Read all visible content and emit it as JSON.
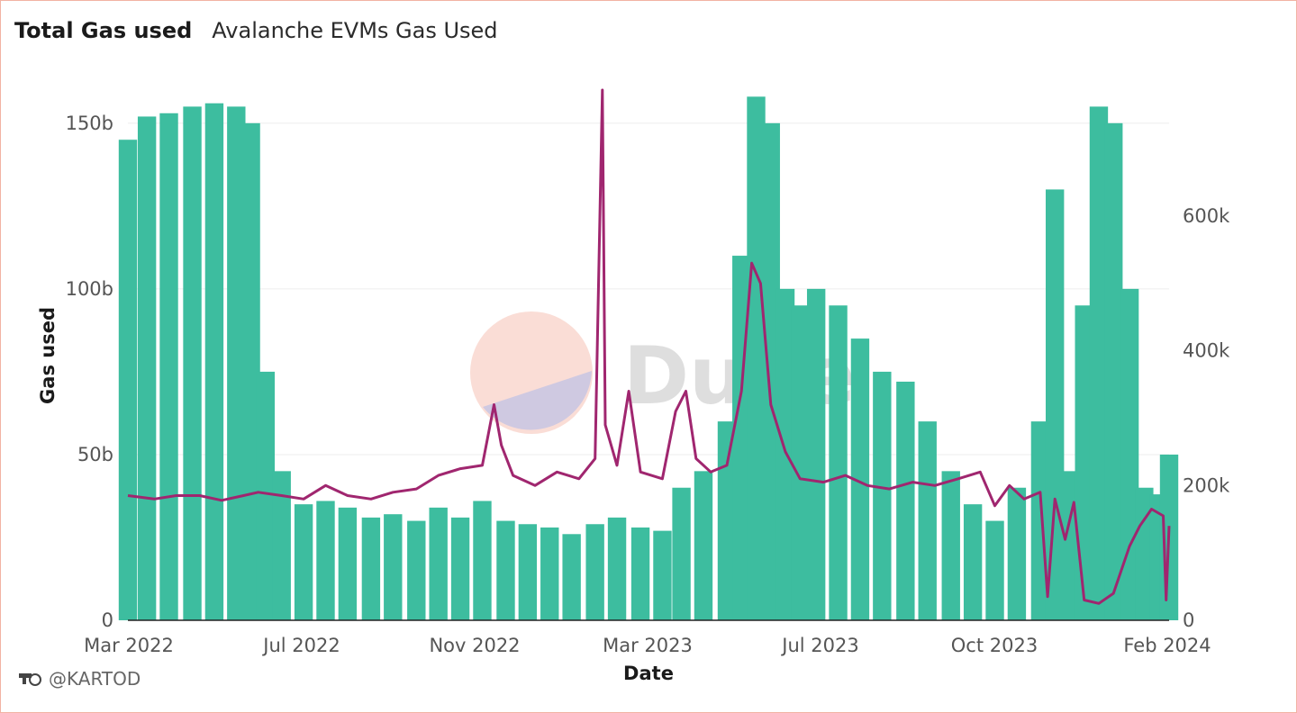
{
  "header": {
    "title": "Total Gas used",
    "subtitle": "Avalanche EVMs Gas Used"
  },
  "footer": {
    "author": "@KARTOD",
    "logo_icon": "dune-user-logo-icon"
  },
  "watermark": {
    "text": "Dune"
  },
  "colors": {
    "bars": "#3dbd9f",
    "line": "#a0266f",
    "grid": "#eeeeee",
    "frame": "#f2b3a3"
  },
  "chart_data": {
    "type": "bar",
    "xlabel": "Date",
    "ylabel": "Gas used",
    "y2label": "",
    "ylim": [
      0,
      160000000000
    ],
    "y2lim": [
      0,
      787000
    ],
    "yticks": [
      "0",
      "50b",
      "100b",
      "150b"
    ],
    "y2ticks": [
      "0",
      "200k",
      "400k",
      "600k"
    ],
    "xticks": [
      "Mar 2022",
      "Jul 2022",
      "Nov 2022",
      "Mar 2023",
      "Jul 2023",
      "Oct 2023",
      "Feb 2024"
    ],
    "x_range": [
      "2022-02-20",
      "2024-02-01"
    ],
    "grid": true,
    "series": [
      {
        "name": "",
        "type": "bar",
        "axis": "left",
        "points": [
          [
            "2022-02-20",
            145000000000
          ],
          [
            "2022-03-05",
            152000000000
          ],
          [
            "2022-03-20",
            153000000000
          ],
          [
            "2022-04-05",
            155000000000
          ],
          [
            "2022-04-20",
            156000000000
          ],
          [
            "2022-05-05",
            155000000000
          ],
          [
            "2022-05-15",
            150000000000
          ],
          [
            "2022-05-25",
            75000000000
          ],
          [
            "2022-06-05",
            45000000000
          ],
          [
            "2022-06-20",
            35000000000
          ],
          [
            "2022-07-05",
            36000000000
          ],
          [
            "2022-07-20",
            34000000000
          ],
          [
            "2022-08-05",
            31000000000
          ],
          [
            "2022-08-20",
            32000000000
          ],
          [
            "2022-09-05",
            30000000000
          ],
          [
            "2022-09-20",
            34000000000
          ],
          [
            "2022-10-05",
            31000000000
          ],
          [
            "2022-10-20",
            36000000000
          ],
          [
            "2022-11-05",
            30000000000
          ],
          [
            "2022-11-20",
            29000000000
          ],
          [
            "2022-12-05",
            28000000000
          ],
          [
            "2022-12-20",
            26000000000
          ],
          [
            "2023-01-05",
            29000000000
          ],
          [
            "2023-01-20",
            31000000000
          ],
          [
            "2023-02-05",
            28000000000
          ],
          [
            "2023-02-20",
            27000000000
          ],
          [
            "2023-03-05",
            40000000000
          ],
          [
            "2023-03-20",
            45000000000
          ],
          [
            "2023-04-05",
            60000000000
          ],
          [
            "2023-04-15",
            110000000000
          ],
          [
            "2023-04-25",
            158000000000
          ],
          [
            "2023-05-05",
            150000000000
          ],
          [
            "2023-05-15",
            100000000000
          ],
          [
            "2023-05-25",
            95000000000
          ],
          [
            "2023-06-05",
            100000000000
          ],
          [
            "2023-06-20",
            95000000000
          ],
          [
            "2023-07-05",
            85000000000
          ],
          [
            "2023-07-20",
            75000000000
          ],
          [
            "2023-08-05",
            72000000000
          ],
          [
            "2023-08-20",
            60000000000
          ],
          [
            "2023-09-05",
            45000000000
          ],
          [
            "2023-09-20",
            35000000000
          ],
          [
            "2023-10-05",
            30000000000
          ],
          [
            "2023-10-20",
            40000000000
          ],
          [
            "2023-11-05",
            60000000000
          ],
          [
            "2023-11-15",
            130000000000
          ],
          [
            "2023-11-25",
            45000000000
          ],
          [
            "2023-12-05",
            95000000000
          ],
          [
            "2023-12-15",
            155000000000
          ],
          [
            "2023-12-25",
            150000000000
          ],
          [
            "2024-01-05",
            100000000000
          ],
          [
            "2024-01-15",
            40000000000
          ],
          [
            "2024-01-25",
            38000000000
          ],
          [
            "2024-02-01",
            50000000000
          ]
        ]
      },
      {
        "name": "",
        "type": "line",
        "axis": "right",
        "points": [
          [
            "2022-02-20",
            185000
          ],
          [
            "2022-03-10",
            180000
          ],
          [
            "2022-03-25",
            185000
          ],
          [
            "2022-04-10",
            185000
          ],
          [
            "2022-04-25",
            178000
          ],
          [
            "2022-05-10",
            185000
          ],
          [
            "2022-05-20",
            190000
          ],
          [
            "2022-06-05",
            185000
          ],
          [
            "2022-06-20",
            180000
          ],
          [
            "2022-07-05",
            200000
          ],
          [
            "2022-07-20",
            185000
          ],
          [
            "2022-08-05",
            180000
          ],
          [
            "2022-08-20",
            190000
          ],
          [
            "2022-09-05",
            195000
          ],
          [
            "2022-09-20",
            215000
          ],
          [
            "2022-10-05",
            225000
          ],
          [
            "2022-10-20",
            230000
          ],
          [
            "2022-10-28",
            320000
          ],
          [
            "2022-11-02",
            260000
          ],
          [
            "2022-11-10",
            215000
          ],
          [
            "2022-11-25",
            200000
          ],
          [
            "2022-12-10",
            220000
          ],
          [
            "2022-12-25",
            210000
          ],
          [
            "2023-01-05",
            240000
          ],
          [
            "2023-01-10",
            787000
          ],
          [
            "2023-01-12",
            290000
          ],
          [
            "2023-01-20",
            230000
          ],
          [
            "2023-01-28",
            340000
          ],
          [
            "2023-02-05",
            220000
          ],
          [
            "2023-02-20",
            210000
          ],
          [
            "2023-03-01",
            310000
          ],
          [
            "2023-03-08",
            340000
          ],
          [
            "2023-03-15",
            240000
          ],
          [
            "2023-03-25",
            220000
          ],
          [
            "2023-04-05",
            230000
          ],
          [
            "2023-04-15",
            340000
          ],
          [
            "2023-04-22",
            530000
          ],
          [
            "2023-04-28",
            500000
          ],
          [
            "2023-05-05",
            320000
          ],
          [
            "2023-05-15",
            250000
          ],
          [
            "2023-05-25",
            210000
          ],
          [
            "2023-06-10",
            205000
          ],
          [
            "2023-06-25",
            215000
          ],
          [
            "2023-07-10",
            200000
          ],
          [
            "2023-07-25",
            195000
          ],
          [
            "2023-08-10",
            205000
          ],
          [
            "2023-08-25",
            200000
          ],
          [
            "2023-09-10",
            210000
          ],
          [
            "2023-09-25",
            220000
          ],
          [
            "2023-10-05",
            170000
          ],
          [
            "2023-10-15",
            200000
          ],
          [
            "2023-10-25",
            180000
          ],
          [
            "2023-11-05",
            190000
          ],
          [
            "2023-11-10",
            35000
          ],
          [
            "2023-11-15",
            180000
          ],
          [
            "2023-11-22",
            120000
          ],
          [
            "2023-11-28",
            175000
          ],
          [
            "2023-12-05",
            30000
          ],
          [
            "2023-12-15",
            25000
          ],
          [
            "2023-12-25",
            40000
          ],
          [
            "2024-01-05",
            110000
          ],
          [
            "2024-01-12",
            140000
          ],
          [
            "2024-01-20",
            165000
          ],
          [
            "2024-01-28",
            155000
          ],
          [
            "2024-01-30",
            30000
          ],
          [
            "2024-02-01",
            140000
          ]
        ]
      }
    ]
  }
}
